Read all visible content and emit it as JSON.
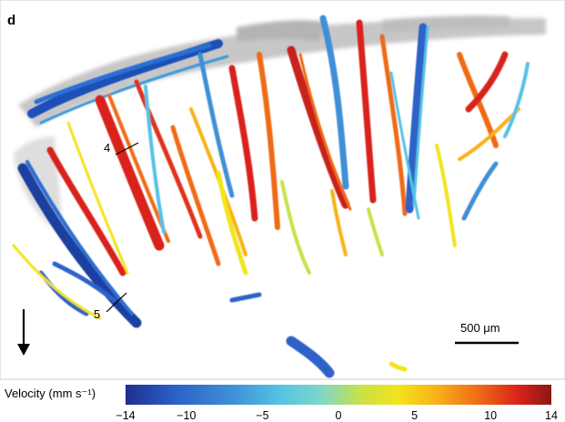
{
  "panel": {
    "letter": "d",
    "callouts": [
      {
        "label": "4"
      },
      {
        "label": "5"
      }
    ],
    "scale_bar": {
      "label": "500 μm"
    },
    "flow_arrow": "down-arrow-icon"
  },
  "colorbar": {
    "title": "Velocity (mm s⁻¹)",
    "min": -14,
    "max": 14,
    "ticks": [
      {
        "value": -14,
        "label": "−14"
      },
      {
        "value": -10,
        "label": "−10"
      },
      {
        "value": -5,
        "label": "−5"
      },
      {
        "value": 0,
        "label": "0"
      },
      {
        "value": 5,
        "label": "5"
      },
      {
        "value": 10,
        "label": "10"
      },
      {
        "value": 14,
        "label": "14"
      }
    ],
    "colors": [
      "#1b2f8f",
      "#2d62c8",
      "#3f8fd6",
      "#55c2e6",
      "#7fd6c8",
      "#c6e24a",
      "#f3e31b",
      "#f8b218",
      "#f06a17",
      "#d9241a",
      "#8e1616"
    ]
  }
}
